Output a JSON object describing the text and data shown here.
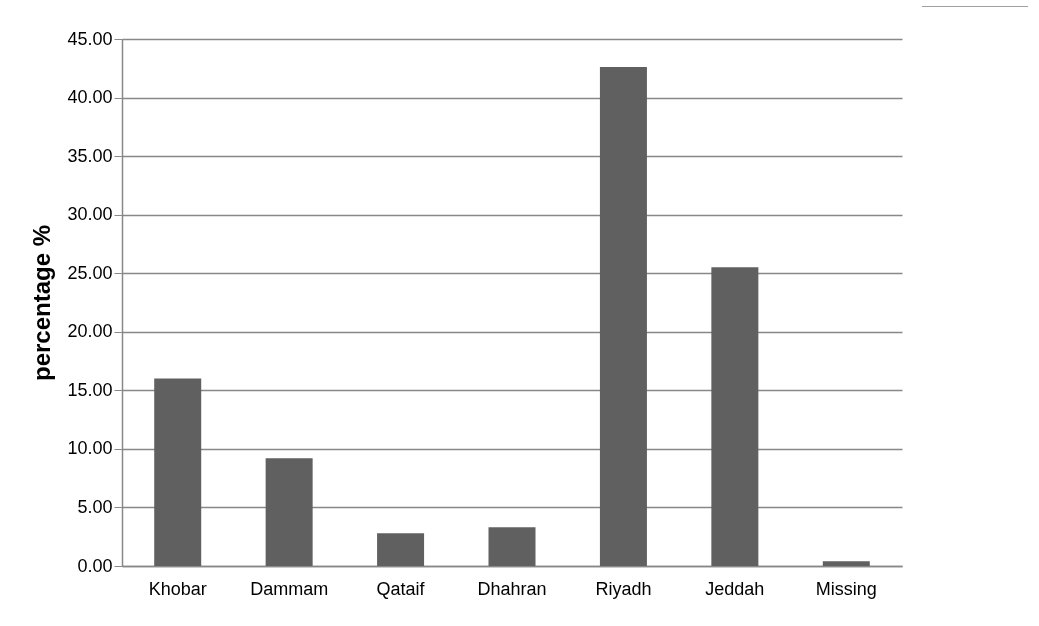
{
  "chart_data": {
    "type": "bar",
    "ylabel": "percentage %",
    "categories": [
      "Khobar",
      "Dammam",
      "Qataif",
      "Dhahran",
      "Riyadh",
      "Jeddah",
      "Missing"
    ],
    "values": [
      16.0,
      9.2,
      2.8,
      3.3,
      42.6,
      25.5,
      0.4
    ],
    "color": "#606060",
    "ylim": [
      0,
      45
    ],
    "yticks": [
      {
        "value": 0,
        "label": "0.00"
      },
      {
        "value": 5,
        "label": "5.00"
      },
      {
        "value": 10,
        "label": "10.00"
      },
      {
        "value": 15,
        "label": "15.00"
      },
      {
        "value": 20,
        "label": "20.00"
      },
      {
        "value": 25,
        "label": "25.00"
      },
      {
        "value": 30,
        "label": "30.00"
      },
      {
        "value": 35,
        "label": "35.00"
      },
      {
        "value": 40,
        "label": "40.00"
      },
      {
        "value": 45,
        "label": "45.00"
      }
    ],
    "grid": "y"
  }
}
